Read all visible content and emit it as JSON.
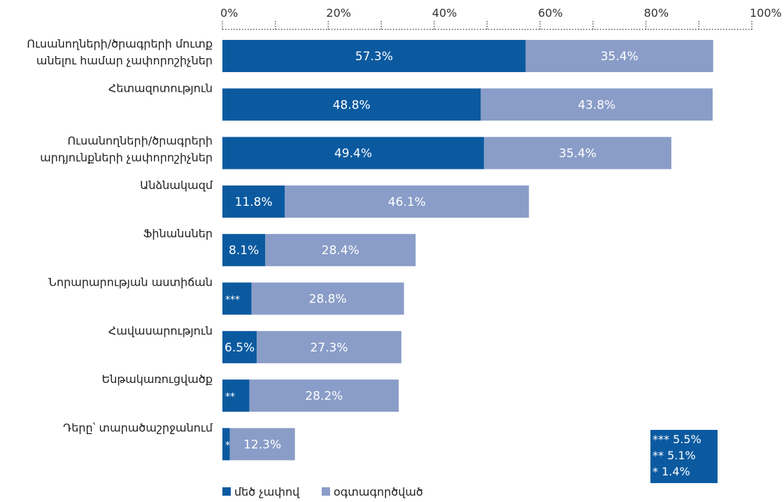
{
  "chart_data": {
    "type": "bar",
    "orientation": "horizontal",
    "stacked": true,
    "categories": [
      [
        "Ուսանողների/ծրագրերի մուտք",
        "անելու համար չափորոշիչներ"
      ],
      [
        "Հետազոտություն"
      ],
      [
        "Ուսանողների/ծրագրերի",
        "արդյունքների չափորոշիչներ"
      ],
      [
        "Անձնակազմ"
      ],
      [
        "Ֆինանսներ"
      ],
      [
        "Նորարարության աստիճան"
      ],
      [
        "Հավասարություն"
      ],
      [
        "Ենթակառուցվածք"
      ],
      [
        "Դերը՝ տարածաշրջանում"
      ]
    ],
    "series": [
      {
        "name": "մեծ չափով",
        "values": [
          57.3,
          48.8,
          49.4,
          11.8,
          8.1,
          5.5,
          6.5,
          5.1,
          1.4
        ],
        "labels": [
          "57.3%",
          "48.8%",
          "49.4%",
          "11.8%",
          "8.1%",
          "***",
          "6.5%",
          "**",
          "*"
        ],
        "color": "#0b5aa0"
      },
      {
        "name": "օգտագործված",
        "values": [
          35.4,
          43.8,
          35.4,
          46.1,
          28.4,
          28.8,
          27.3,
          28.2,
          12.3
        ],
        "labels": [
          "35.4%",
          "43.8%",
          "35.4%",
          "46.1%",
          "28.4%",
          "28.8%",
          "27.3%",
          "28.2%",
          "12.3%"
        ],
        "color": "#8a9dc8"
      }
    ],
    "xlim": [
      0,
      100
    ],
    "x_ticks": [
      "0%",
      "20%",
      "40%",
      "60%",
      "80%",
      "100%"
    ],
    "axis_position": "top",
    "legend_position": "bottom-left"
  },
  "footnotes": [
    "*** 5.5%",
    "** 5.1%",
    "* 1.4%"
  ]
}
